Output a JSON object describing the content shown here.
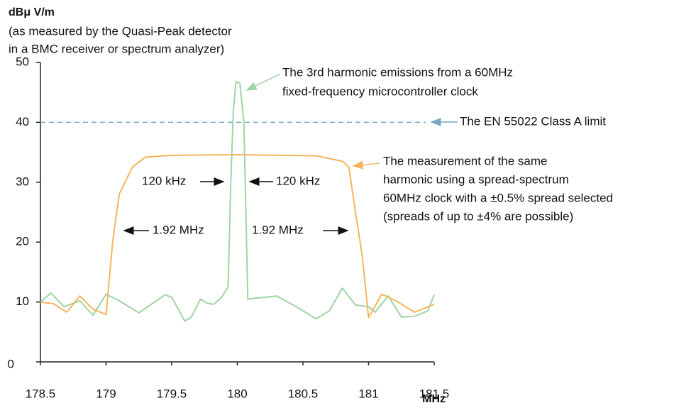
{
  "chart_data": {
    "type": "line",
    "y_label": "dBμ V/m",
    "y_label_note": [
      "(as measured by the Quasi-Peak detector",
      "in a BMC receiver or spectrum analyzer)"
    ],
    "x_label": "MHz",
    "xlim": [
      178.5,
      181.5
    ],
    "xticks": [
      178.5,
      179,
      179.5,
      180,
      180.5,
      181,
      181.5
    ],
    "ylim": [
      0,
      50
    ],
    "yticks": [
      0,
      10,
      20,
      30,
      40,
      50
    ],
    "limit": {
      "value": 40,
      "color": "#7aa7c4"
    },
    "series": [
      {
        "color": "#9fd4a3",
        "x": [
          178.5,
          178.58,
          178.68,
          178.8,
          178.9,
          179.0,
          179.1,
          179.25,
          179.45,
          179.5,
          179.6,
          179.65,
          179.72,
          179.77,
          179.82,
          179.88,
          179.93,
          179.95,
          179.97,
          179.99,
          180.02,
          180.05,
          180.08,
          180.3,
          180.45,
          180.6,
          180.7,
          180.8,
          180.9,
          181.0,
          181.05,
          181.15,
          181.25,
          181.35,
          181.45,
          181.5
        ],
        "values": [
          10,
          11.5,
          9.2,
          10.2,
          7.8,
          11.3,
          10.2,
          8.2,
          11.2,
          10.8,
          6.8,
          7.5,
          10.5,
          9.8,
          9.6,
          10.8,
          12.5,
          30,
          42,
          46.8,
          46.5,
          40,
          10.5,
          11,
          9.2,
          7.2,
          8.5,
          12.3,
          9.5,
          9.2,
          8.3,
          11,
          7.5,
          7.6,
          8.5,
          11.2
        ]
      },
      {
        "color": "#f4b55a",
        "x": [
          178.5,
          178.6,
          178.7,
          178.8,
          178.9,
          179.0,
          179.05,
          179.1,
          179.2,
          179.3,
          179.5,
          180,
          180.6,
          180.8,
          180.85,
          180.9,
          180.95,
          181.0,
          181.1,
          181.2,
          181.35,
          181.5
        ],
        "values": [
          10,
          9.7,
          8.3,
          11,
          8.8,
          7.9,
          20,
          28,
          32.5,
          34.2,
          34.5,
          34.6,
          34.4,
          33.5,
          32.5,
          25,
          18,
          7.4,
          11.3,
          10.3,
          8.3,
          9.6
        ]
      }
    ],
    "annotations": [
      [
        "The 3rd harmonic emissions from a 60MHz",
        "fixed-frequency microcontroller clock"
      ],
      [
        "The EN 55022 Class A limit"
      ],
      [
        "The measurement of the same",
        "harmonic using a spread-spectrum",
        "60MHz clock with a ±0.5% spread selected",
        "(spreads of up to ±4% are possible)"
      ],
      [
        "120 kHz"
      ],
      [
        "120 kHz"
      ],
      [
        "1.92 MHz"
      ],
      [
        "1.92 MHz"
      ]
    ]
  }
}
